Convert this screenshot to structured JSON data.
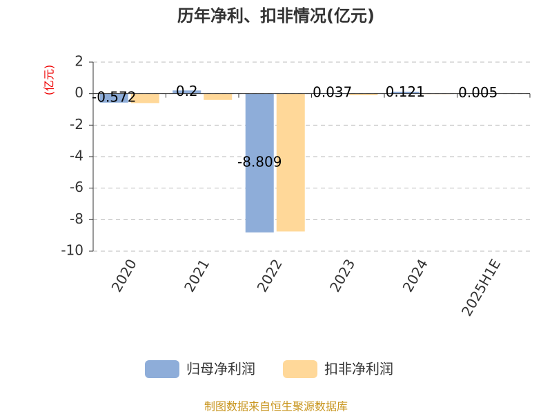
{
  "chart_data": {
    "type": "bar",
    "title": "历年净利、扣非情况(亿元)",
    "y_label": "(亿元)",
    "categories": [
      "2020",
      "2021",
      "2022",
      "2023",
      "2024",
      "2025H1E"
    ],
    "series": [
      {
        "name": "归母净利润",
        "color": "#8eadd9",
        "values": [
          -0.572,
          0.2,
          -8.809,
          0.037,
          0.121,
          0.005
        ],
        "show_labels": true
      },
      {
        "name": "扣非净利润",
        "color": "#ffd899",
        "values": [
          -0.6,
          -0.4,
          -8.75,
          -0.1,
          -0.03,
          null
        ],
        "show_labels": false
      }
    ],
    "ylim": [
      -10,
      2
    ],
    "yticks": [
      -10,
      -8,
      -6,
      -4,
      -2,
      0,
      2
    ],
    "grid": true,
    "footer": "制图数据来自恒生聚源数据库"
  }
}
